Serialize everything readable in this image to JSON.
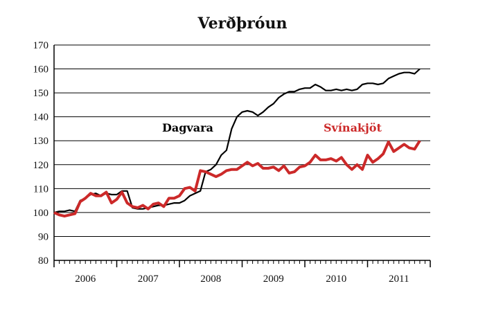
{
  "chart_data": {
    "type": "line",
    "title": "Verðþróun",
    "xlabel": "",
    "ylabel": "",
    "ylim": [
      80,
      170
    ],
    "yticks": [
      80,
      90,
      100,
      110,
      120,
      130,
      140,
      150,
      160,
      170
    ],
    "xlim": [
      "2006-01",
      "2011-12"
    ],
    "years": [
      "2006",
      "2007",
      "2008",
      "2009",
      "2010",
      "2011"
    ],
    "grid": true,
    "legend": "inline labels",
    "series": [
      {
        "name": "Dagvara",
        "color": "#000000",
        "x": [
          "2006-01",
          "2006-02",
          "2006-03",
          "2006-04",
          "2006-05",
          "2006-06",
          "2006-07",
          "2006-08",
          "2006-09",
          "2006-10",
          "2006-11",
          "2006-12",
          "2007-01",
          "2007-02",
          "2007-03",
          "2007-04",
          "2007-05",
          "2007-06",
          "2007-07",
          "2007-08",
          "2007-09",
          "2007-10",
          "2007-11",
          "2007-12",
          "2008-01",
          "2008-02",
          "2008-03",
          "2008-04",
          "2008-05",
          "2008-06",
          "2008-07",
          "2008-08",
          "2008-09",
          "2008-10",
          "2008-11",
          "2008-12",
          "2009-01",
          "2009-02",
          "2009-03",
          "2009-04",
          "2009-05",
          "2009-06",
          "2009-07",
          "2009-08",
          "2009-09",
          "2009-10",
          "2009-11",
          "2009-12",
          "2010-01",
          "2010-02",
          "2010-03",
          "2010-04",
          "2010-05",
          "2010-06",
          "2010-07",
          "2010-08",
          "2010-09",
          "2010-10",
          "2010-11",
          "2010-12",
          "2011-01",
          "2011-02",
          "2011-03",
          "2011-04",
          "2011-05",
          "2011-06",
          "2011-07",
          "2011-08",
          "2011-09",
          "2011-10",
          "2011-11",
          "2011-12"
        ],
        "values": [
          100,
          100.5,
          100.5,
          101,
          100.5,
          105,
          106,
          107.5,
          108,
          107,
          108,
          107.5,
          107.5,
          109,
          109,
          102,
          101.5,
          101.5,
          102,
          102.5,
          103,
          103,
          103.5,
          104,
          104,
          105,
          107,
          108,
          109,
          117,
          118,
          120,
          124,
          126,
          135,
          140,
          142,
          142.5,
          142,
          140.5,
          142,
          144,
          145.5,
          148,
          149.5,
          150.5,
          150.5,
          151.5,
          152,
          152,
          153.5,
          152.5,
          151,
          151,
          151.5,
          151,
          151.5,
          151,
          151.5,
          153.5,
          154,
          154,
          153.5,
          154,
          156,
          157,
          158,
          158.5,
          158.5,
          158,
          160,
          null
        ]
      },
      {
        "name": "Svínakjöt",
        "color": "#cc2929",
        "x": [
          "2006-01",
          "2006-02",
          "2006-03",
          "2006-04",
          "2006-05",
          "2006-06",
          "2006-07",
          "2006-08",
          "2006-09",
          "2006-10",
          "2006-11",
          "2006-12",
          "2007-01",
          "2007-02",
          "2007-03",
          "2007-04",
          "2007-05",
          "2007-06",
          "2007-07",
          "2007-08",
          "2007-09",
          "2007-10",
          "2007-11",
          "2007-12",
          "2008-01",
          "2008-02",
          "2008-03",
          "2008-04",
          "2008-05",
          "2008-06",
          "2008-07",
          "2008-08",
          "2008-09",
          "2008-10",
          "2008-11",
          "2008-12",
          "2009-01",
          "2009-02",
          "2009-03",
          "2009-04",
          "2009-05",
          "2009-06",
          "2009-07",
          "2009-08",
          "2009-09",
          "2009-10",
          "2009-11",
          "2009-12",
          "2010-01",
          "2010-02",
          "2010-03",
          "2010-04",
          "2010-05",
          "2010-06",
          "2010-07",
          "2010-08",
          "2010-09",
          "2010-10",
          "2010-11",
          "2010-12",
          "2011-01",
          "2011-02",
          "2011-03",
          "2011-04",
          "2011-05",
          "2011-06",
          "2011-07",
          "2011-08",
          "2011-09",
          "2011-10",
          "2011-11",
          "2011-12"
        ],
        "values": [
          100,
          99,
          98.5,
          99,
          99.5,
          104.5,
          106,
          108,
          107,
          107,
          108.5,
          104,
          105.5,
          108.5,
          104,
          102.5,
          102,
          103,
          101.5,
          103.5,
          104,
          102.5,
          106,
          106,
          107,
          110,
          110.5,
          109,
          117.5,
          117,
          116,
          115,
          116,
          117.5,
          118,
          118,
          119.5,
          121,
          119.5,
          120.5,
          118.5,
          118.5,
          119,
          117.5,
          119.5,
          116.5,
          117,
          119,
          119.5,
          121,
          124,
          122,
          122,
          122.5,
          121.5,
          123,
          120,
          118,
          120,
          118,
          124,
          121,
          122.5,
          124.5,
          129.5,
          125.5,
          127,
          128.5,
          127,
          126.5,
          130,
          null
        ]
      }
    ]
  }
}
